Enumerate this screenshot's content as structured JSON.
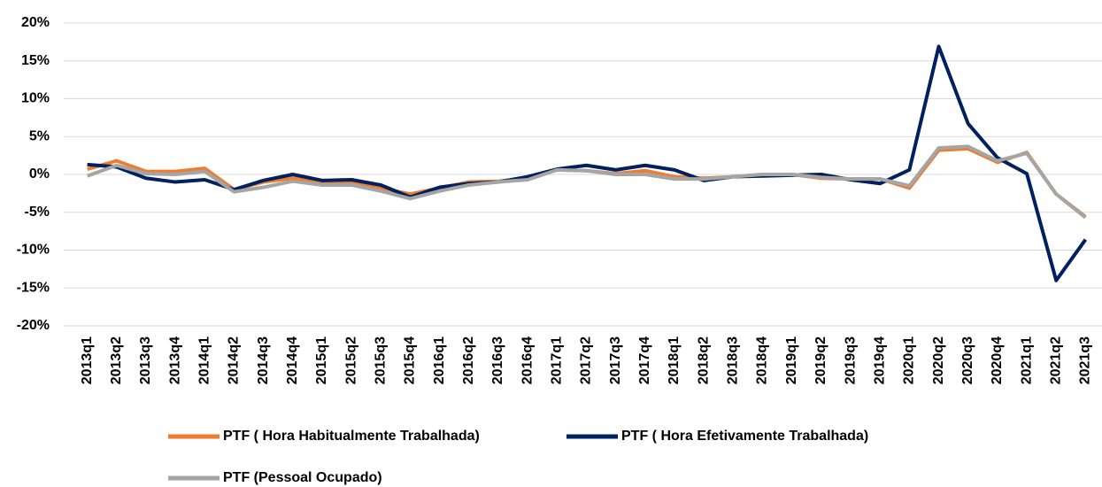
{
  "chart_data": {
    "type": "line",
    "categories": [
      "2013q1",
      "2013q2",
      "2013q3",
      "2013q4",
      "2014q1",
      "2014q2",
      "2014q3",
      "2014q4",
      "2015q1",
      "2015q2",
      "2015q3",
      "2015q4",
      "2016q1",
      "2016q2",
      "2016q3",
      "2016q4",
      "2017q1",
      "2017q2",
      "2017q3",
      "2017q4",
      "2018q1",
      "2018q2",
      "2018q3",
      "2018q4",
      "2019q1",
      "2019q2",
      "2019q3",
      "2019q4",
      "2020q1",
      "2020q2",
      "2020q3",
      "2020q4",
      "2021q1",
      "2021q2",
      "2021q3"
    ],
    "series": [
      {
        "name": "PTF ( Hora Habitualmente Trabalhada)",
        "color": "#ed7d31",
        "values": [
          0.7,
          1.8,
          0.4,
          0.4,
          0.8,
          -2.0,
          -1.0,
          -0.5,
          -1.0,
          -1.0,
          -1.8,
          -2.6,
          -1.8,
          -1.0,
          -0.9,
          -0.5,
          0.6,
          0.5,
          0.1,
          0.5,
          -0.3,
          -0.5,
          -0.3,
          0.0,
          0.0,
          -0.5,
          -0.6,
          -0.6,
          -1.8,
          3.2,
          3.4,
          1.6,
          2.9,
          -2.6,
          -5.6
        ]
      },
      {
        "name": "PTF ( Hora Efetivamente Trabalhada)",
        "color": "#002060",
        "values": [
          1.3,
          1.0,
          -0.5,
          -1.0,
          -0.7,
          -2.0,
          -0.8,
          0.0,
          -0.8,
          -0.7,
          -1.4,
          -3.0,
          -1.7,
          -1.2,
          -1.0,
          -0.3,
          0.7,
          1.2,
          0.6,
          1.2,
          0.6,
          -0.8,
          -0.3,
          -0.2,
          -0.1,
          0.0,
          -0.7,
          -1.2,
          0.6,
          16.9,
          6.7,
          2.2,
          0.1,
          -14.0,
          -8.6
        ]
      },
      {
        "name": "PTF (Pessoal Ocupado)",
        "color": "#a5a5a5",
        "values": [
          -0.2,
          1.2,
          0.1,
          0.0,
          0.4,
          -2.3,
          -1.7,
          -0.9,
          -1.4,
          -1.4,
          -2.2,
          -3.2,
          -2.2,
          -1.4,
          -1.0,
          -0.7,
          0.6,
          0.5,
          0.0,
          0.0,
          -0.6,
          -0.6,
          -0.3,
          0.0,
          0.0,
          -0.4,
          -0.6,
          -0.6,
          -1.5,
          3.5,
          3.7,
          1.8,
          2.8,
          -2.6,
          -5.7
        ]
      }
    ],
    "ylim": [
      -20,
      20
    ],
    "yticks": [
      {
        "value": -20,
        "label": "-20%"
      },
      {
        "value": -15,
        "label": "-15%"
      },
      {
        "value": -10,
        "label": "-10%"
      },
      {
        "value": -5,
        "label": "-5%"
      },
      {
        "value": 0,
        "label": "0%"
      },
      {
        "value": 5,
        "label": "5%"
      },
      {
        "value": 10,
        "label": "10%"
      },
      {
        "value": 15,
        "label": "15%"
      },
      {
        "value": 20,
        "label": "20%"
      }
    ],
    "grid": true,
    "legend": "bottom"
  }
}
